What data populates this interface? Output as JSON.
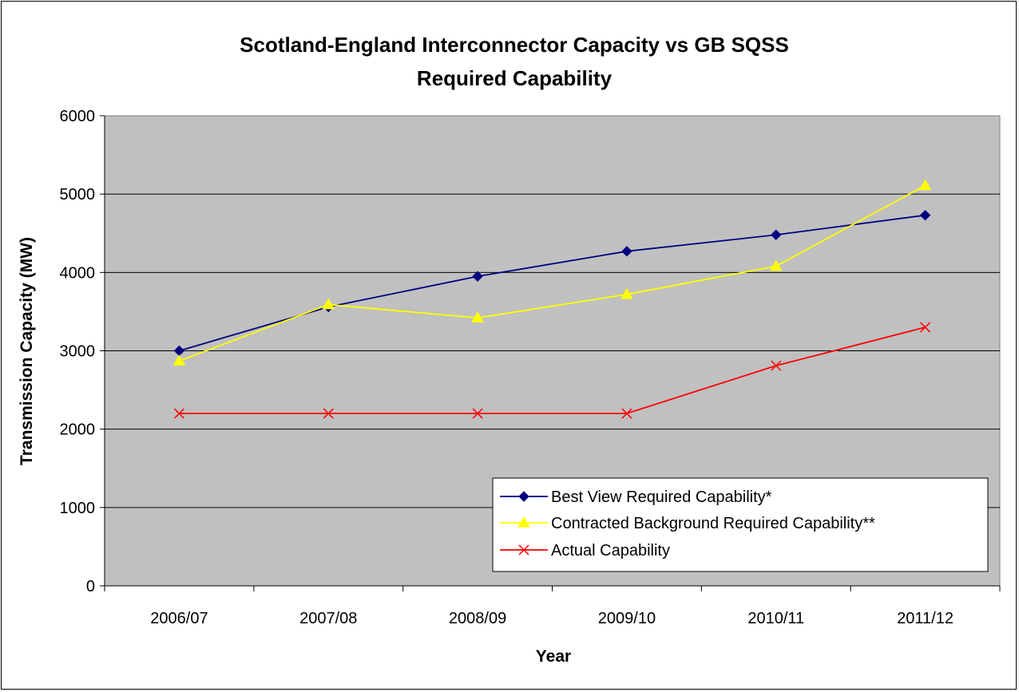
{
  "chart_data": {
    "type": "line",
    "title_lines": [
      "Scotland-England Interconnector Capacity vs GB SQSS",
      "Required Capability"
    ],
    "xlabel": "Year",
    "ylabel": "Transmission Capacity (MW)",
    "categories": [
      "2006/07",
      "2007/08",
      "2008/09",
      "2009/10",
      "2010/11",
      "2011/12"
    ],
    "ylim": [
      0,
      6000
    ],
    "yticks": [
      0,
      1000,
      2000,
      3000,
      4000,
      5000,
      6000
    ],
    "grid": true,
    "plot_background": "#c0c0c0",
    "legend_position": "lower-right",
    "series": [
      {
        "name": "Best View Required Capability*",
        "color": "#000080",
        "marker": "diamond",
        "values": [
          3000,
          3560,
          3950,
          4270,
          4480,
          4730
        ]
      },
      {
        "name": "Contracted Background Required Capability**",
        "color": "#ffff00",
        "marker": "triangle",
        "values": [
          2870,
          3590,
          3420,
          3720,
          4080,
          5110
        ]
      },
      {
        "name": "Actual Capability",
        "color": "#ff0000",
        "marker": "x",
        "values": [
          2200,
          2200,
          2200,
          2200,
          2810,
          3300
        ]
      }
    ]
  }
}
